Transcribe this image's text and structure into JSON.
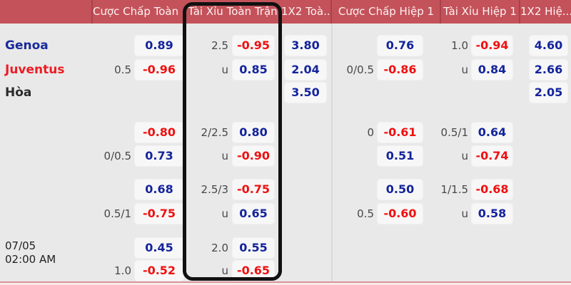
{
  "table": {
    "header_columns": [
      {
        "id": "handicap_fulltime",
        "label": "Cược Chấp Toàn ..."
      },
      {
        "id": "over_under_fulltime",
        "label": "Tài Xỉu Toàn Trận"
      },
      {
        "id": "1x2_fulltime",
        "label": "1X2 Toà..."
      },
      {
        "id": "handicap_half1",
        "label": "Cược Chấp Hiệp 1"
      },
      {
        "id": "over_under_half1",
        "label": "Tài Xỉu Hiệp 1"
      },
      {
        "id": "1x2_half1",
        "label": "1X2 Hiệ..."
      }
    ],
    "match": {
      "date": "07/05",
      "time": "02:00 AM"
    },
    "rows": [
      {
        "team": {
          "name": "Genoa",
          "role": "home",
          "color": "#1a2b9b"
        },
        "ah_ft": {
          "line": "",
          "value": "0.89"
        },
        "ou_ft": {
          "line": "2.5",
          "value": "-0.95"
        },
        "x12_ft": "3.80",
        "ah_h1": {
          "line": "",
          "value": "0.76"
        },
        "ou_h1": {
          "line": "1.0",
          "value": "-0.94"
        },
        "x12_h1": "4.60"
      },
      {
        "team": {
          "name": "Juventus",
          "role": "away",
          "color": "#ec1c24"
        },
        "ah_ft": {
          "line": "0.5",
          "value": "-0.96"
        },
        "ou_ft": {
          "line": "u",
          "value": "0.85"
        },
        "x12_ft": "2.04",
        "ah_h1": {
          "line": "0/0.5",
          "value": "-0.86"
        },
        "ou_h1": {
          "line": "u",
          "value": "0.84"
        },
        "x12_h1": "2.66"
      },
      {
        "team": {
          "name": "Hòa",
          "role": "draw",
          "color": "#2b2b2b"
        },
        "x12_ft": "3.50",
        "x12_h1": "2.05"
      },
      {
        "ah_ft": {
          "line": "",
          "value": "-0.80"
        },
        "ou_ft": {
          "line": "2/2.5",
          "value": "0.80"
        },
        "ah_h1": {
          "line": "0",
          "value": "-0.61"
        },
        "ou_h1": {
          "line": "0.5/1",
          "value": "0.64"
        }
      },
      {
        "ah_ft": {
          "line": "0/0.5",
          "value": "0.73"
        },
        "ou_ft": {
          "line": "u",
          "value": "-0.90"
        },
        "ah_h1": {
          "line": "",
          "value": "0.51"
        },
        "ou_h1": {
          "line": "u",
          "value": "-0.74"
        }
      },
      {
        "ah_ft": {
          "line": "",
          "value": "0.68"
        },
        "ou_ft": {
          "line": "2.5/3",
          "value": "-0.75"
        },
        "ah_h1": {
          "line": "",
          "value": "0.50"
        },
        "ou_h1": {
          "line": "1/1.5",
          "value": "-0.68"
        }
      },
      {
        "ah_ft": {
          "line": "0.5/1",
          "value": "-0.75"
        },
        "ou_ft": {
          "line": "u",
          "value": "0.65"
        },
        "ah_h1": {
          "line": "0.5",
          "value": "-0.60"
        },
        "ou_h1": {
          "line": "u",
          "value": "0.58"
        }
      },
      {
        "ah_ft": {
          "line": "",
          "value": "0.45"
        },
        "ou_ft": {
          "line": "2.0",
          "value": "0.55"
        }
      },
      {
        "ah_ft": {
          "line": "1.0",
          "value": "-0.52"
        },
        "ou_ft": {
          "line": "u",
          "value": "-0.65"
        }
      }
    ]
  },
  "colors": {
    "header_bg": "#c4525a",
    "header_text": "#fdf2f2",
    "header_divider": "#aa414a",
    "body_bg": "#e9e9e9",
    "cell_bg": "#f7f7f7",
    "odds_positive": "#14249c",
    "odds_negative": "#f01010",
    "line_text": "#474747",
    "home_team": "#1a2b9b",
    "away_team": "#ec1c24",
    "draw_label": "#2b2b2b",
    "highlight_border": "#111111",
    "bottom_accent": "#dd9298"
  }
}
